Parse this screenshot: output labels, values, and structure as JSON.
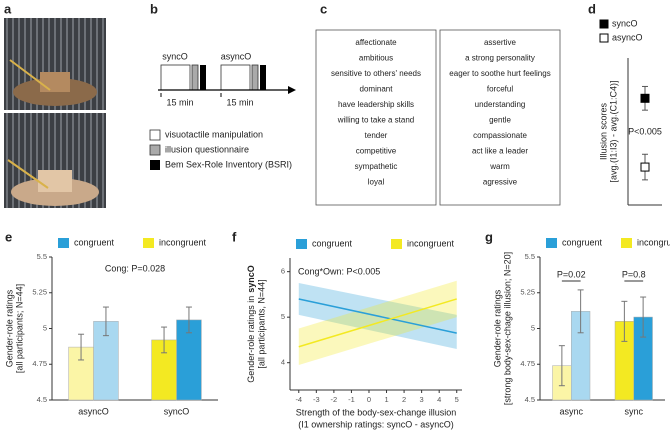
{
  "panel_labels": [
    "a",
    "b",
    "c",
    "d",
    "e",
    "f",
    "g"
  ],
  "protocol": {
    "conditions": [
      "syncO",
      "asyncO"
    ],
    "durations": [
      "15 min",
      "15 min"
    ],
    "legend": [
      "visuotactile manipulation",
      "illusion questionnaire",
      "Bem Sex-Role Inventory (BSRI)"
    ]
  },
  "adjectives": {
    "left": [
      {
        "text": "affectionate",
        "color": "#111111"
      },
      {
        "text": "ambitious",
        "color": "#8a8a8a"
      },
      {
        "text": "sensitive to others' needs",
        "color": "#111111"
      },
      {
        "text": "dominant",
        "color": "#8a8a8a"
      },
      {
        "text": "have leadership skills",
        "color": "#8a8a8a"
      },
      {
        "text": "willing to take a stand",
        "color": "#8a8a8a"
      },
      {
        "text": "tender",
        "color": "#111111"
      },
      {
        "text": "competitive",
        "color": "#8a8a8a"
      },
      {
        "text": "sympathetic",
        "color": "#111111"
      },
      {
        "text": "loyal",
        "color": "#111111"
      }
    ],
    "right": [
      {
        "text": "assertive",
        "color": "#8a8a8a"
      },
      {
        "text": "a strong personality",
        "color": "#8a8a8a"
      },
      {
        "text": "eager to soothe hurt feelings",
        "color": "#111111"
      },
      {
        "text": "forceful",
        "color": "#8a8a8a"
      },
      {
        "text": "understanding",
        "color": "#111111"
      },
      {
        "text": "gentle",
        "color": "#111111"
      },
      {
        "text": "compassionate",
        "color": "#111111"
      },
      {
        "text": "act like a leader",
        "color": "#8a8a8a"
      },
      {
        "text": "warm",
        "color": "#111111"
      },
      {
        "text": "agressive",
        "color": "#8a8a8a"
      }
    ]
  },
  "chart_data": [
    {
      "type": "point",
      "categories": [
        "syncO",
        "asyncO"
      ],
      "values": [
        1.75,
        0.3
      ],
      "errors": [
        0.25,
        0.27
      ],
      "colors": [
        "#000000",
        "#ffffff"
      ],
      "ylim": [
        -0.5,
        2.6
      ],
      "ylabel": [
        "Illusion scores",
        "[avg.(I1:I3) - avg.(C1:C4)]"
      ],
      "annotation": "P<0.005"
    },
    {
      "type": "bar",
      "categories": [
        "asyncO",
        "syncO"
      ],
      "series": [
        {
          "name": "congruent",
          "color": "#2a9fd8",
          "colors": [
            "#a9d8f0",
            "#2a9fd8"
          ],
          "values": [
            5.05,
            5.06
          ],
          "errors": [
            0.1,
            0.09
          ]
        },
        {
          "name": "incongruent",
          "color": "#f3e922",
          "colors": [
            "#fbf5a6",
            "#f3e922"
          ],
          "values": [
            4.87,
            4.92
          ],
          "errors": [
            0.09,
            0.09
          ]
        }
      ],
      "ylim": [
        4.5,
        5.5
      ],
      "yticks": [
        4.5,
        4.75,
        5,
        5.25,
        5.5
      ],
      "ylabel": [
        "Gender-role ratings",
        "[all participants; N=44]"
      ],
      "annotation": "Cong: P=0.028"
    },
    {
      "type": "line",
      "x": [
        -4,
        5
      ],
      "series": [
        {
          "name": "congruent",
          "color": "#2a9fd8",
          "values": [
            5.4,
            4.65
          ],
          "lower": [
            5.05,
            4.3
          ],
          "upper": [
            5.75,
            5.05
          ]
        },
        {
          "name": "incongruent",
          "color": "#f3e922",
          "values": [
            4.35,
            5.4
          ],
          "lower": [
            3.95,
            5.0
          ],
          "upper": [
            4.75,
            5.8
          ]
        }
      ],
      "xlim": [
        -4.5,
        5.3
      ],
      "xticks": [
        -4,
        -3,
        -2,
        -1,
        0,
        1,
        2,
        3,
        4,
        5
      ],
      "ylim": [
        3.4,
        6.3
      ],
      "yticks": [
        4,
        5,
        6
      ],
      "ylabel": [
        "Gender-role ratings in",
        "syncO",
        "[all participants, N=44]"
      ],
      "xlabel": [
        "Strength of the body-sex-change illusion",
        "(I1 ownership ratings: syncO - asyncO)"
      ],
      "annotation": "Cong*Own: P<0.005"
    },
    {
      "type": "bar",
      "categories": [
        "async",
        "sync"
      ],
      "series": [
        {
          "name": "congruent",
          "color": "#2a9fd8",
          "colors": [
            "#a9d8f0",
            "#2a9fd8"
          ],
          "values": [
            5.12,
            5.08
          ],
          "errors": [
            0.15,
            0.14
          ]
        },
        {
          "name": "incongruent",
          "color": "#f3e922",
          "colors": [
            "#fbf5a6",
            "#f3e922"
          ],
          "values": [
            4.74,
            5.05
          ],
          "errors": [
            0.14,
            0.14
          ]
        }
      ],
      "ylim": [
        4.5,
        5.5
      ],
      "yticks": [
        4.5,
        4.75,
        5,
        5.25,
        5.5
      ],
      "ylabel": [
        "Gender-role ratings",
        "[strong body-sex-chage illusion; N=20]"
      ],
      "comparisons": [
        "P=0.02",
        "P=0.8"
      ]
    }
  ]
}
